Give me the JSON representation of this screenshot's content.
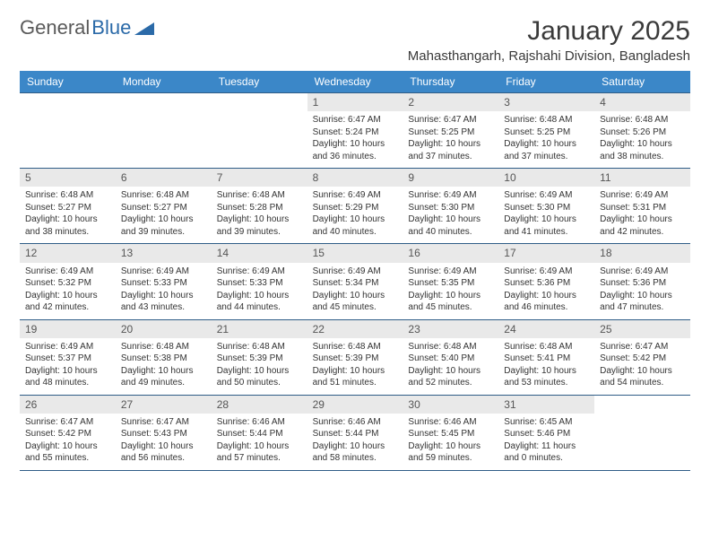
{
  "brand": {
    "part1": "General",
    "part2": "Blue"
  },
  "title": "January 2025",
  "location": "Mahasthangarh, Rajshahi Division, Bangladesh",
  "colors": {
    "header_bg": "#3b87c8",
    "header_text": "#ffffff",
    "week_border": "#2f5d87",
    "daynum_bg": "#e9e9e9",
    "body_text": "#333333",
    "logo_gray": "#5a5a5a",
    "logo_blue": "#2b6aa8"
  },
  "day_names": [
    "Sunday",
    "Monday",
    "Tuesday",
    "Wednesday",
    "Thursday",
    "Friday",
    "Saturday"
  ],
  "weeks": [
    [
      {
        "n": "",
        "sr": "",
        "ss": "",
        "dl": ""
      },
      {
        "n": "",
        "sr": "",
        "ss": "",
        "dl": ""
      },
      {
        "n": "",
        "sr": "",
        "ss": "",
        "dl": ""
      },
      {
        "n": "1",
        "sr": "Sunrise: 6:47 AM",
        "ss": "Sunset: 5:24 PM",
        "dl": "Daylight: 10 hours and 36 minutes."
      },
      {
        "n": "2",
        "sr": "Sunrise: 6:47 AM",
        "ss": "Sunset: 5:25 PM",
        "dl": "Daylight: 10 hours and 37 minutes."
      },
      {
        "n": "3",
        "sr": "Sunrise: 6:48 AM",
        "ss": "Sunset: 5:25 PM",
        "dl": "Daylight: 10 hours and 37 minutes."
      },
      {
        "n": "4",
        "sr": "Sunrise: 6:48 AM",
        "ss": "Sunset: 5:26 PM",
        "dl": "Daylight: 10 hours and 38 minutes."
      }
    ],
    [
      {
        "n": "5",
        "sr": "Sunrise: 6:48 AM",
        "ss": "Sunset: 5:27 PM",
        "dl": "Daylight: 10 hours and 38 minutes."
      },
      {
        "n": "6",
        "sr": "Sunrise: 6:48 AM",
        "ss": "Sunset: 5:27 PM",
        "dl": "Daylight: 10 hours and 39 minutes."
      },
      {
        "n": "7",
        "sr": "Sunrise: 6:48 AM",
        "ss": "Sunset: 5:28 PM",
        "dl": "Daylight: 10 hours and 39 minutes."
      },
      {
        "n": "8",
        "sr": "Sunrise: 6:49 AM",
        "ss": "Sunset: 5:29 PM",
        "dl": "Daylight: 10 hours and 40 minutes."
      },
      {
        "n": "9",
        "sr": "Sunrise: 6:49 AM",
        "ss": "Sunset: 5:30 PM",
        "dl": "Daylight: 10 hours and 40 minutes."
      },
      {
        "n": "10",
        "sr": "Sunrise: 6:49 AM",
        "ss": "Sunset: 5:30 PM",
        "dl": "Daylight: 10 hours and 41 minutes."
      },
      {
        "n": "11",
        "sr": "Sunrise: 6:49 AM",
        "ss": "Sunset: 5:31 PM",
        "dl": "Daylight: 10 hours and 42 minutes."
      }
    ],
    [
      {
        "n": "12",
        "sr": "Sunrise: 6:49 AM",
        "ss": "Sunset: 5:32 PM",
        "dl": "Daylight: 10 hours and 42 minutes."
      },
      {
        "n": "13",
        "sr": "Sunrise: 6:49 AM",
        "ss": "Sunset: 5:33 PM",
        "dl": "Daylight: 10 hours and 43 minutes."
      },
      {
        "n": "14",
        "sr": "Sunrise: 6:49 AM",
        "ss": "Sunset: 5:33 PM",
        "dl": "Daylight: 10 hours and 44 minutes."
      },
      {
        "n": "15",
        "sr": "Sunrise: 6:49 AM",
        "ss": "Sunset: 5:34 PM",
        "dl": "Daylight: 10 hours and 45 minutes."
      },
      {
        "n": "16",
        "sr": "Sunrise: 6:49 AM",
        "ss": "Sunset: 5:35 PM",
        "dl": "Daylight: 10 hours and 45 minutes."
      },
      {
        "n": "17",
        "sr": "Sunrise: 6:49 AM",
        "ss": "Sunset: 5:36 PM",
        "dl": "Daylight: 10 hours and 46 minutes."
      },
      {
        "n": "18",
        "sr": "Sunrise: 6:49 AM",
        "ss": "Sunset: 5:36 PM",
        "dl": "Daylight: 10 hours and 47 minutes."
      }
    ],
    [
      {
        "n": "19",
        "sr": "Sunrise: 6:49 AM",
        "ss": "Sunset: 5:37 PM",
        "dl": "Daylight: 10 hours and 48 minutes."
      },
      {
        "n": "20",
        "sr": "Sunrise: 6:48 AM",
        "ss": "Sunset: 5:38 PM",
        "dl": "Daylight: 10 hours and 49 minutes."
      },
      {
        "n": "21",
        "sr": "Sunrise: 6:48 AM",
        "ss": "Sunset: 5:39 PM",
        "dl": "Daylight: 10 hours and 50 minutes."
      },
      {
        "n": "22",
        "sr": "Sunrise: 6:48 AM",
        "ss": "Sunset: 5:39 PM",
        "dl": "Daylight: 10 hours and 51 minutes."
      },
      {
        "n": "23",
        "sr": "Sunrise: 6:48 AM",
        "ss": "Sunset: 5:40 PM",
        "dl": "Daylight: 10 hours and 52 minutes."
      },
      {
        "n": "24",
        "sr": "Sunrise: 6:48 AM",
        "ss": "Sunset: 5:41 PM",
        "dl": "Daylight: 10 hours and 53 minutes."
      },
      {
        "n": "25",
        "sr": "Sunrise: 6:47 AM",
        "ss": "Sunset: 5:42 PM",
        "dl": "Daylight: 10 hours and 54 minutes."
      }
    ],
    [
      {
        "n": "26",
        "sr": "Sunrise: 6:47 AM",
        "ss": "Sunset: 5:42 PM",
        "dl": "Daylight: 10 hours and 55 minutes."
      },
      {
        "n": "27",
        "sr": "Sunrise: 6:47 AM",
        "ss": "Sunset: 5:43 PM",
        "dl": "Daylight: 10 hours and 56 minutes."
      },
      {
        "n": "28",
        "sr": "Sunrise: 6:46 AM",
        "ss": "Sunset: 5:44 PM",
        "dl": "Daylight: 10 hours and 57 minutes."
      },
      {
        "n": "29",
        "sr": "Sunrise: 6:46 AM",
        "ss": "Sunset: 5:44 PM",
        "dl": "Daylight: 10 hours and 58 minutes."
      },
      {
        "n": "30",
        "sr": "Sunrise: 6:46 AM",
        "ss": "Sunset: 5:45 PM",
        "dl": "Daylight: 10 hours and 59 minutes."
      },
      {
        "n": "31",
        "sr": "Sunrise: 6:45 AM",
        "ss": "Sunset: 5:46 PM",
        "dl": "Daylight: 11 hours and 0 minutes."
      },
      {
        "n": "",
        "sr": "",
        "ss": "",
        "dl": ""
      }
    ]
  ]
}
